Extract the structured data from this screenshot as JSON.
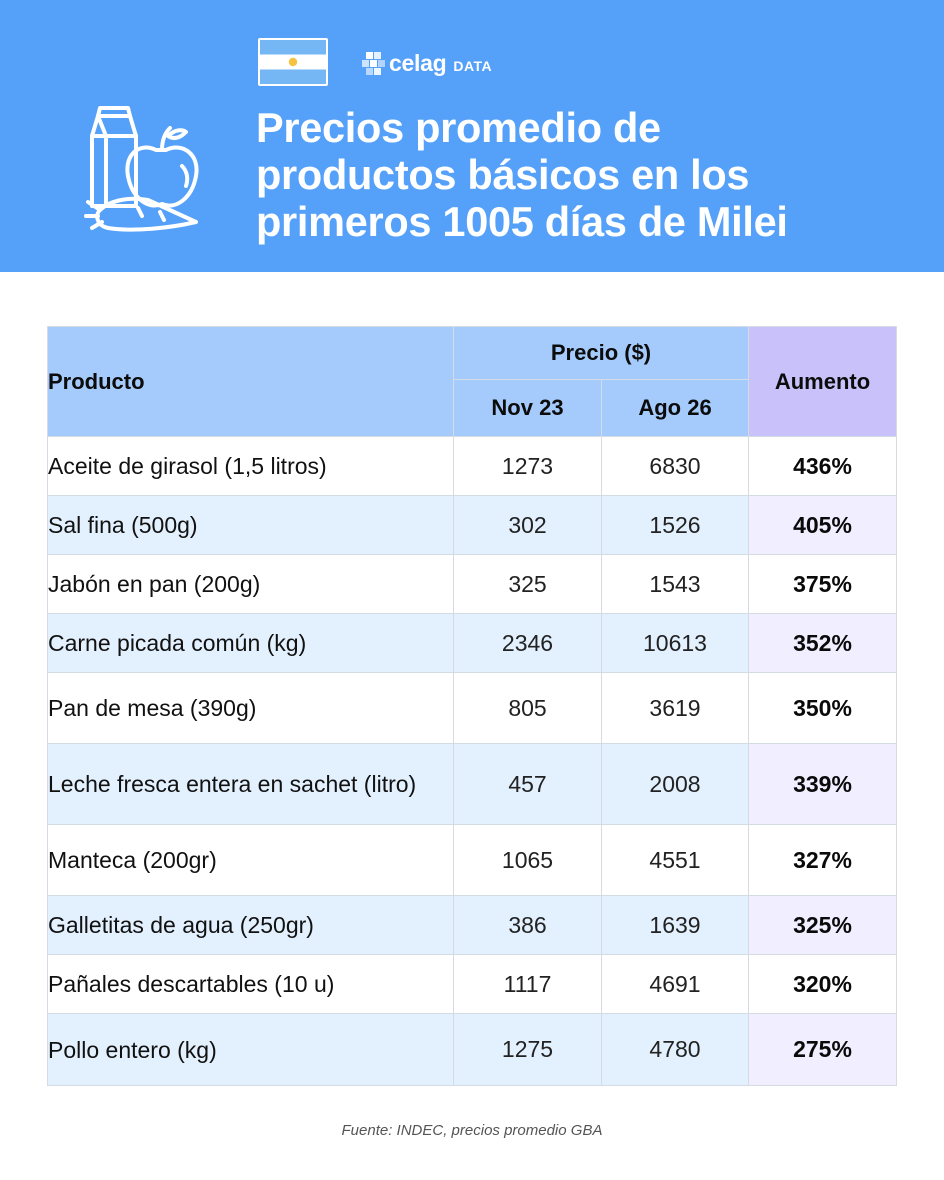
{
  "brand": {
    "name": "celag",
    "sub": "DATA"
  },
  "icons": {
    "flag": "argentina-flag-icon",
    "brand_mark": "pixel-logo-icon",
    "illustration": "groceries-icon"
  },
  "colors": {
    "header_bg": "#55a1f9",
    "table_header": "#a4cbfb",
    "increase_header": "#c9c2fa",
    "row_alt": "#e3f0fd",
    "increase_alt": "#f1efff"
  },
  "title": {
    "line1": "Precios promedio de",
    "line2": "productos básicos en los",
    "line3": "primeros 1005 días de Milei"
  },
  "chart_data": {
    "type": "table",
    "title": "Precios promedio de productos básicos en los primeros 1005 días de Milei",
    "columns": {
      "product": "Producto",
      "price_group": "Precio ($)",
      "period_1": "Nov 23",
      "period_2": "Ago 26",
      "increase": "Aumento"
    },
    "rows": [
      {
        "product": "Aceite de girasol (1,5 litros)",
        "nov23": "1273",
        "ago26": "6830",
        "increase": "436%"
      },
      {
        "product": "Sal fina (500g)",
        "nov23": "302",
        "ago26": "1526",
        "increase": "405%"
      },
      {
        "product": "Jabón en pan (200g)",
        "nov23": "325",
        "ago26": "1543",
        "increase": "375%"
      },
      {
        "product": "Carne picada común (kg)",
        "nov23": "2346",
        "ago26": "10613",
        "increase": "352%"
      },
      {
        "product": "Pan de mesa (390g)",
        "nov23": "805",
        "ago26": "3619",
        "increase": "350%"
      },
      {
        "product": "Leche fresca entera en sachet (litro)",
        "nov23": "457",
        "ago26": "2008",
        "increase": "339%"
      },
      {
        "product": "Manteca (200gr)",
        "nov23": "1065",
        "ago26": "4551",
        "increase": "327%"
      },
      {
        "product": "Galletitas de agua (250gr)",
        "nov23": "386",
        "ago26": "1639",
        "increase": "325%"
      },
      {
        "product": "Pañales descartables (10 u)",
        "nov23": "1117",
        "ago26": "4691",
        "increase": "320%"
      },
      {
        "product": "Pollo entero (kg)",
        "nov23": "1275",
        "ago26": "4780",
        "increase": "275%"
      }
    ],
    "source": "Fuente: INDEC, precios promedio GBA"
  }
}
